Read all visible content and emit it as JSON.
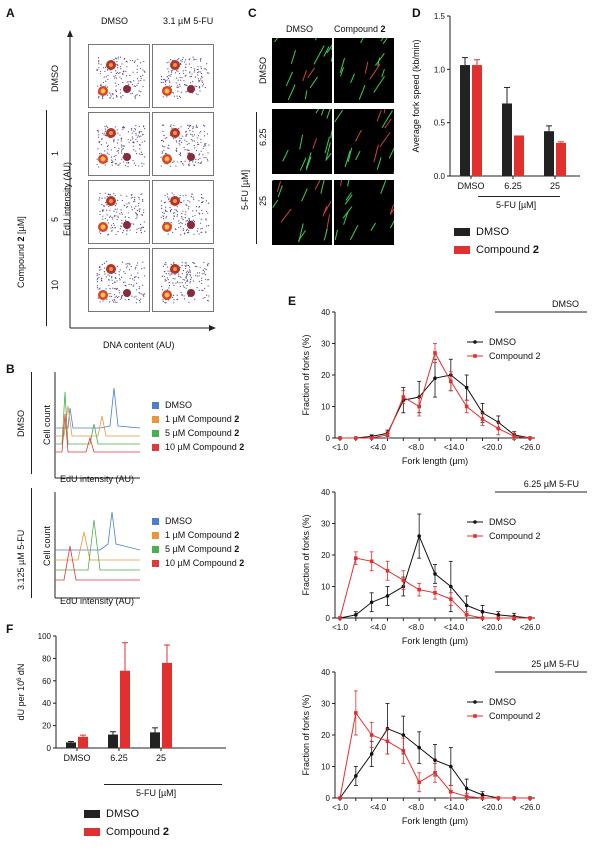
{
  "panels": {
    "A": {
      "label": "A",
      "col_headers": [
        "DMSO",
        "3.1 µM 5-FU"
      ],
      "row_labels": [
        "DMSO",
        "1",
        "5",
        "10"
      ],
      "group_label_prefix": "Compound ",
      "group_label_bold": "2",
      "group_label_suffix": " [µM]",
      "ylabel": "EdU intensity (AU)",
      "xlabel": "DNA content (AU)"
    },
    "B": {
      "label": "B",
      "groups": [
        "DMSO",
        "3.125 µM 5-FU"
      ],
      "ylabel": "Cell count",
      "xlabel": "EdU intensity (AU)",
      "legend": [
        {
          "text": "DMSO",
          "bold": "",
          "color": "#4a7fd0"
        },
        {
          "text": "1 µM Compound ",
          "bold": "2",
          "color": "#e8963a"
        },
        {
          "text": "5 µM Compound ",
          "bold": "2",
          "color": "#4caf50"
        },
        {
          "text": "10 µM Compound ",
          "bold": "2",
          "color": "#e03a3a"
        }
      ]
    },
    "C": {
      "label": "C",
      "col_headers": [
        "DMSO",
        "Compound "
      ],
      "col_header_bold": "2",
      "row_labels": [
        "DMSO",
        "6.25",
        "25"
      ],
      "group_label": "5-FU [µM]"
    },
    "D": {
      "label": "D",
      "group_label": "5-FU [µM]",
      "legend": [
        {
          "text": "DMSO",
          "bold": "",
          "color": "#222222"
        },
        {
          "text": "Compound ",
          "bold": "2",
          "color": "#e03030"
        }
      ]
    },
    "E": {
      "label": "E"
    },
    "F": {
      "label": "F",
      "group_label": "5-FU [µM]",
      "legend": [
        {
          "text": "DMSO",
          "bold": "",
          "color": "#222222"
        },
        {
          "text": "Compound ",
          "bold": "2",
          "color": "#e03030"
        }
      ]
    }
  },
  "chart_data": [
    {
      "id": "D",
      "type": "bar",
      "categories": [
        "DMSO",
        "6.25",
        "25"
      ],
      "series": [
        {
          "name": "DMSO",
          "color": "#222222",
          "values": [
            1.04,
            0.68,
            0.42
          ],
          "errors": [
            0.07,
            0.15,
            0.05
          ]
        },
        {
          "name": "Compound 2",
          "color": "#e03030",
          "values": [
            1.04,
            0.38,
            0.31
          ],
          "errors": [
            0.05,
            0.0,
            0.01
          ]
        }
      ],
      "ylabel": "Average fork speed (kb/min)",
      "xlabel": "",
      "ylim": [
        0,
        1.5
      ],
      "yticks": [
        "0.0",
        "0.5",
        "1.0",
        "1.5"
      ],
      "grid": false
    },
    {
      "id": "E1",
      "type": "line",
      "title": "DMSO",
      "x": [
        1,
        2,
        3,
        4,
        5,
        6,
        7,
        8,
        9,
        10,
        11,
        12,
        13
      ],
      "xtick_labels": [
        "<1.0",
        "<4.0",
        "<8.0",
        "<14.0",
        "<20.0",
        "<26.0"
      ],
      "series": [
        {
          "name": "DMSO",
          "color": "#111111",
          "values": [
            0,
            0,
            0.5,
            1.5,
            12,
            13,
            19,
            20,
            16,
            8,
            5,
            1,
            0
          ],
          "errors": [
            0,
            0,
            0.5,
            1,
            4,
            5,
            6,
            5,
            4,
            3,
            2,
            1,
            0
          ]
        },
        {
          "name": "Compound 2",
          "color": "#e03030",
          "values": [
            0,
            0,
            0,
            1,
            13,
            10,
            27,
            18,
            10,
            6,
            3,
            0.5,
            0
          ],
          "errors": [
            0,
            0,
            0,
            1,
            2,
            3,
            3,
            3,
            2,
            2,
            2,
            1,
            0
          ]
        }
      ],
      "ylabel": "Fraction of forks (%)",
      "xlabel": "Fork length (µm)",
      "ylim": [
        0,
        40
      ],
      "yticks": [
        "0",
        "10",
        "20",
        "30",
        "40"
      ]
    },
    {
      "id": "E2",
      "type": "line",
      "title": "6.25 µM 5-FU",
      "x": [
        1,
        2,
        3,
        4,
        5,
        6,
        7,
        8,
        9,
        10,
        11,
        12,
        13
      ],
      "xtick_labels": [
        "<1.0",
        "<4.0",
        "<8.0",
        "<14.0",
        "<20.0",
        "<26.0"
      ],
      "series": [
        {
          "name": "DMSO",
          "color": "#111111",
          "values": [
            0,
            1,
            5,
            7,
            10,
            26,
            14,
            10,
            4,
            2,
            1,
            0.5,
            0
          ],
          "errors": [
            0,
            1,
            3,
            3,
            3,
            7,
            3,
            8,
            3,
            2,
            1,
            1,
            0
          ]
        },
        {
          "name": "Compound 2",
          "color": "#e03030",
          "values": [
            0,
            19,
            18,
            15,
            12,
            9,
            8,
            6,
            1,
            0,
            0,
            0,
            0
          ],
          "errors": [
            0,
            2,
            3,
            3,
            3,
            2,
            2,
            2,
            1,
            0,
            0,
            0,
            0
          ]
        }
      ],
      "ylabel": "Fraction of forks (%)",
      "xlabel": "Fork length (µm)",
      "ylim": [
        0,
        40
      ],
      "yticks": [
        "0",
        "10",
        "20",
        "30",
        "40"
      ]
    },
    {
      "id": "E3",
      "type": "line",
      "title": "25 µM 5-FU",
      "x": [
        1,
        2,
        3,
        4,
        5,
        6,
        7,
        8,
        9,
        10,
        11,
        12,
        13
      ],
      "xtick_labels": [
        "<1.0",
        "<4.0",
        "<8.0",
        "<14.0",
        "<20.0",
        "<26.0"
      ],
      "series": [
        {
          "name": "DMSO",
          "color": "#111111",
          "values": [
            0,
            7,
            14,
            22,
            20,
            16,
            12,
            10,
            3,
            1,
            0,
            0,
            0
          ],
          "errors": [
            0,
            3,
            4,
            8,
            6,
            5,
            5,
            6,
            3,
            1,
            0,
            0,
            0
          ]
        },
        {
          "name": "Compound 2",
          "color": "#e03030",
          "values": [
            0,
            27,
            20,
            18,
            15,
            5,
            8,
            2,
            0.5,
            0,
            0,
            0,
            0
          ],
          "errors": [
            0,
            7,
            4,
            4,
            4,
            3,
            3,
            2,
            1,
            0,
            0,
            0,
            0
          ]
        }
      ],
      "ylabel": "Fraction of forks (%)",
      "xlabel": "Fork length (µm)",
      "ylim": [
        0,
        40
      ],
      "yticks": [
        "0",
        "10",
        "20",
        "30",
        "40"
      ]
    },
    {
      "id": "F",
      "type": "bar",
      "categories": [
        "DMSO",
        "6.25",
        "25"
      ],
      "series": [
        {
          "name": "DMSO",
          "color": "#222222",
          "values": [
            5,
            12,
            14
          ],
          "errors": [
            0.8,
            2.5,
            4
          ]
        },
        {
          "name": "Compound 2",
          "color": "#e03030",
          "values": [
            10,
            69,
            76
          ],
          "errors": [
            1.5,
            25,
            16
          ]
        }
      ],
      "ylabel_prefix": "dU per 10",
      "ylabel_sup": "6",
      "ylabel_suffix": " dN",
      "xlabel": "",
      "ylim": [
        0,
        100
      ],
      "yticks": [
        "0",
        "20",
        "40",
        "60",
        "80",
        "100"
      ],
      "grid": false
    }
  ]
}
